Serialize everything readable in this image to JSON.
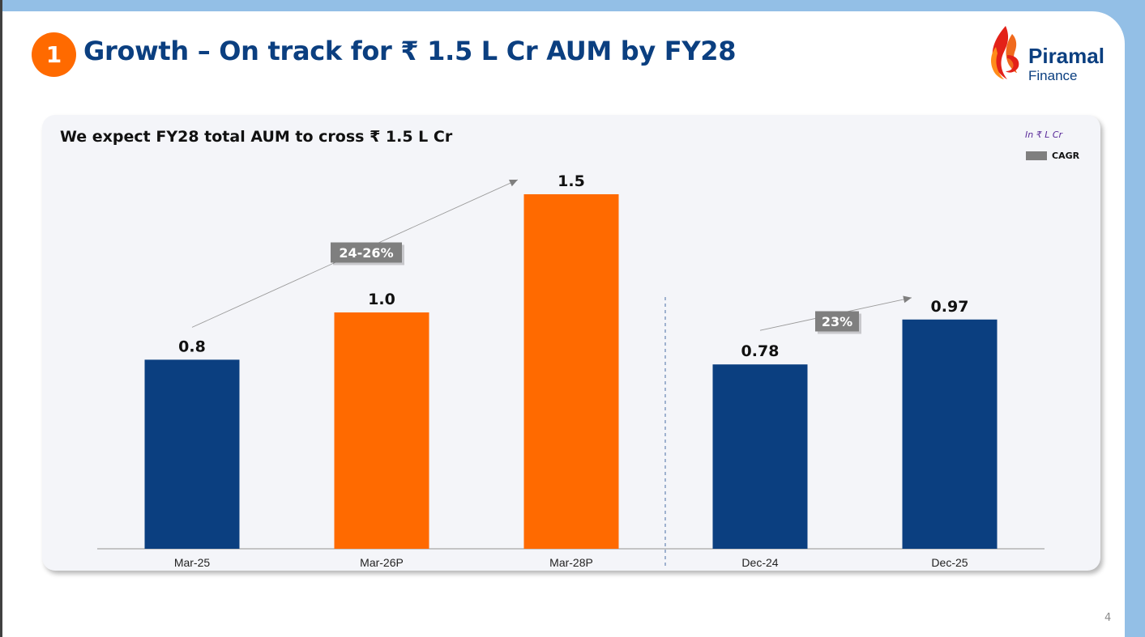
{
  "header": {
    "slide_number": "1",
    "title": "Growth – On track for ₹ 1.5 L Cr AUM by FY28",
    "logo_name": "Piramal",
    "logo_sub": "Finance"
  },
  "card": {
    "title": "We expect FY28 total AUM to cross ₹ 1.5 L Cr",
    "unit_note": "In ₹ L Cr",
    "legend_label": "CAGR"
  },
  "colors": {
    "navy": "#0b3f80",
    "orange": "#ff6a00",
    "cagr_box": "#7f7f7f"
  },
  "chart_data": [
    {
      "type": "bar",
      "categories": [
        "Mar-25",
        "Mar-26P",
        "Mar-28P"
      ],
      "values": [
        0.8,
        1.0,
        1.5
      ],
      "value_labels": [
        "0.8",
        "1.0",
        "1.5"
      ],
      "bar_colors": [
        "#0b3f80",
        "#ff6a00",
        "#ff6a00"
      ],
      "annotation": {
        "label": "24-26%",
        "from": "Mar-25",
        "to": "Mar-28P"
      },
      "ylim": [
        0,
        1.5
      ]
    },
    {
      "type": "bar",
      "categories": [
        "Dec-24",
        "Dec-25"
      ],
      "values": [
        0.78,
        0.97
      ],
      "value_labels": [
        "0.78",
        "0.97"
      ],
      "bar_colors": [
        "#0b3f80",
        "#0b3f80"
      ],
      "annotation": {
        "label": "23%",
        "from": "Dec-24",
        "to": "Dec-25"
      },
      "ylim": [
        0,
        1.5
      ]
    }
  ],
  "page_number": "4"
}
